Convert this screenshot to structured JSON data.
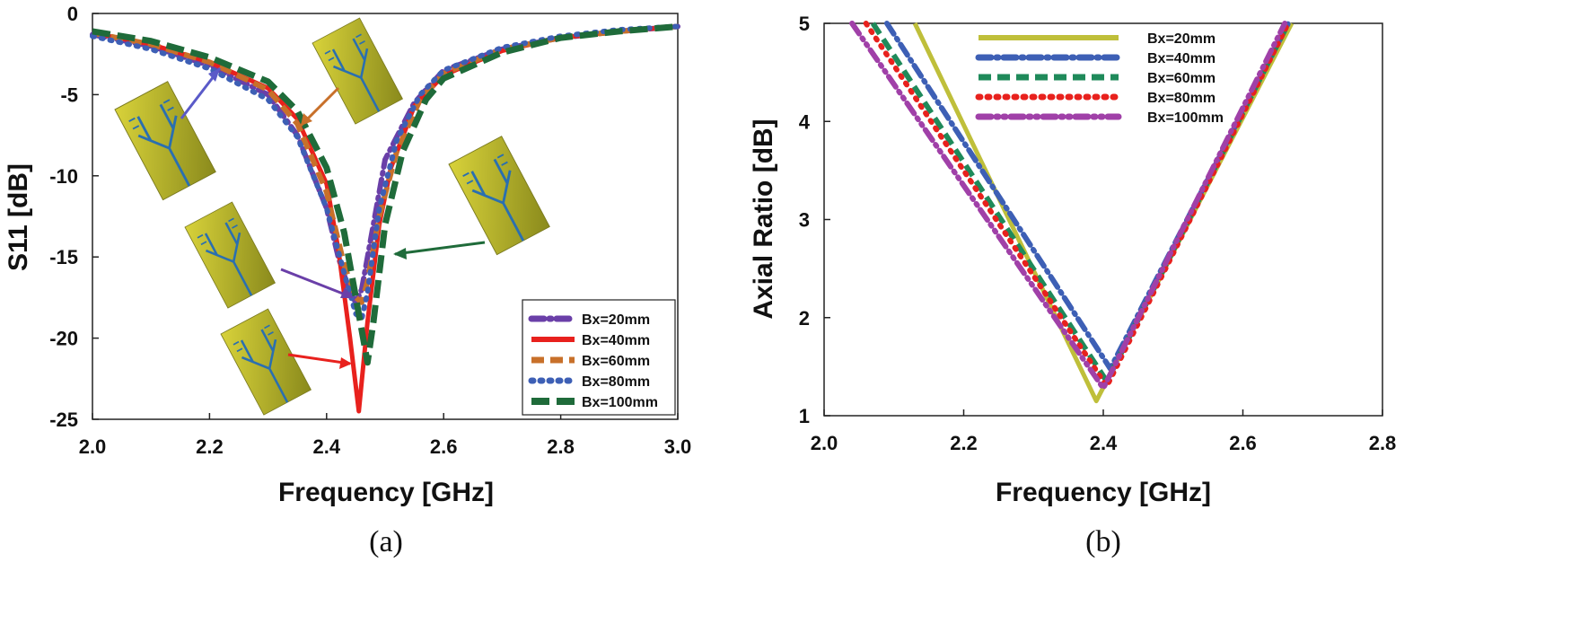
{
  "chart_data": [
    {
      "id": "a",
      "type": "line",
      "caption": "(a)",
      "xlabel": "Frequency [GHz]",
      "ylabel": "S11 [dB]",
      "xlim": [
        2.0,
        3.0
      ],
      "ylim": [
        -25,
        0
      ],
      "xticks": [
        "2.0",
        "2.2",
        "2.4",
        "2.6",
        "2.8",
        "3.0"
      ],
      "yticks": [
        "0",
        "-5",
        "-10",
        "-15",
        "-20",
        "-25"
      ],
      "legend_position": "bottom-right",
      "series": [
        {
          "name": "Bx=20mm",
          "color": "#6a3fa8",
          "style": "dashdot",
          "x": [
            2.0,
            2.1,
            2.2,
            2.3,
            2.35,
            2.4,
            2.42,
            2.44,
            2.45,
            2.46,
            2.48,
            2.5,
            2.55,
            2.6,
            2.7,
            2.8,
            2.9,
            3.0
          ],
          "y": [
            -1.3,
            -2.0,
            -3.2,
            -5.0,
            -7.5,
            -12.0,
            -15.0,
            -17.2,
            -17.8,
            -17.0,
            -13.0,
            -9.0,
            -5.5,
            -3.5,
            -2.2,
            -1.5,
            -1.1,
            -0.8
          ]
        },
        {
          "name": "Bx=40mm",
          "color": "#e8211d",
          "style": "solid",
          "x": [
            2.0,
            2.1,
            2.2,
            2.3,
            2.35,
            2.4,
            2.42,
            2.44,
            2.455,
            2.47,
            2.49,
            2.51,
            2.55,
            2.6,
            2.7,
            2.8,
            2.9,
            3.0
          ],
          "y": [
            -1.2,
            -1.9,
            -3.0,
            -4.6,
            -6.5,
            -10.5,
            -14.5,
            -20.0,
            -24.5,
            -19.0,
            -13.0,
            -9.5,
            -5.7,
            -3.8,
            -2.3,
            -1.5,
            -1.1,
            -0.8
          ]
        },
        {
          "name": "Bx=60mm",
          "color": "#c8702a",
          "style": "dash",
          "x": [
            2.0,
            2.1,
            2.2,
            2.3,
            2.35,
            2.4,
            2.43,
            2.45,
            2.46,
            2.47,
            2.49,
            2.52,
            2.56,
            2.6,
            2.7,
            2.8,
            2.9,
            3.0
          ],
          "y": [
            -1.2,
            -1.9,
            -3.0,
            -4.7,
            -6.8,
            -11.0,
            -15.5,
            -17.5,
            -17.8,
            -16.5,
            -12.5,
            -8.5,
            -5.3,
            -3.7,
            -2.2,
            -1.5,
            -1.1,
            -0.8
          ]
        },
        {
          "name": "Bx=80mm",
          "color": "#3d5fb5",
          "style": "dot",
          "x": [
            2.0,
            2.1,
            2.2,
            2.3,
            2.35,
            2.4,
            2.43,
            2.45,
            2.46,
            2.47,
            2.49,
            2.52,
            2.56,
            2.6,
            2.7,
            2.8,
            2.9,
            3.0
          ],
          "y": [
            -1.4,
            -2.2,
            -3.4,
            -5.3,
            -7.6,
            -12.0,
            -16.0,
            -18.5,
            -18.8,
            -17.2,
            -12.0,
            -7.8,
            -5.0,
            -3.5,
            -2.1,
            -1.4,
            -1.0,
            -0.8
          ]
        },
        {
          "name": "Bx=100mm",
          "color": "#1f6b3a",
          "style": "longdash",
          "x": [
            2.0,
            2.1,
            2.2,
            2.3,
            2.35,
            2.4,
            2.43,
            2.45,
            2.47,
            2.48,
            2.5,
            2.53,
            2.57,
            2.6,
            2.7,
            2.8,
            2.9,
            3.0
          ],
          "y": [
            -1.1,
            -1.7,
            -2.7,
            -4.2,
            -6.0,
            -9.5,
            -13.5,
            -17.5,
            -21.5,
            -19.0,
            -13.0,
            -8.5,
            -5.3,
            -4.0,
            -2.4,
            -1.5,
            -1.1,
            -0.8
          ]
        }
      ],
      "annotations": [
        "antenna-inset-1",
        "antenna-inset-2",
        "antenna-inset-3",
        "antenna-inset-4",
        "antenna-inset-5"
      ]
    },
    {
      "id": "b",
      "type": "line",
      "caption": "(b)",
      "xlabel": "Frequency [GHz]",
      "ylabel": "Axial Ratio [dB]",
      "xlim": [
        2.0,
        2.8
      ],
      "ylim": [
        1,
        5
      ],
      "xticks": [
        "2.0",
        "2.2",
        "2.4",
        "2.6",
        "2.8"
      ],
      "yticks": [
        "1",
        "2",
        "3",
        "4",
        "5"
      ],
      "legend_position": "top-center",
      "series": [
        {
          "name": "Bx=20mm",
          "color": "#bfbf3a",
          "style": "solid",
          "x": [
            2.13,
            2.39,
            2.67
          ],
          "y": [
            5.0,
            1.15,
            5.0
          ]
        },
        {
          "name": "Bx=40mm",
          "color": "#3d5fb5",
          "style": "dashdot",
          "x": [
            2.09,
            2.41,
            2.665
          ],
          "y": [
            5.0,
            1.48,
            5.0
          ]
        },
        {
          "name": "Bx=60mm",
          "color": "#1f8a5a",
          "style": "dash",
          "x": [
            2.07,
            2.405,
            2.665
          ],
          "y": [
            5.0,
            1.35,
            5.0
          ]
        },
        {
          "name": "Bx=80mm",
          "color": "#e8211d",
          "style": "dot",
          "x": [
            2.06,
            2.405,
            2.665
          ],
          "y": [
            5.0,
            1.3,
            5.0
          ]
        },
        {
          "name": "Bx=100mm",
          "color": "#a040a8",
          "style": "dashdotdot",
          "x": [
            2.04,
            2.4,
            2.66
          ],
          "y": [
            5.0,
            1.28,
            5.0
          ]
        }
      ]
    }
  ]
}
